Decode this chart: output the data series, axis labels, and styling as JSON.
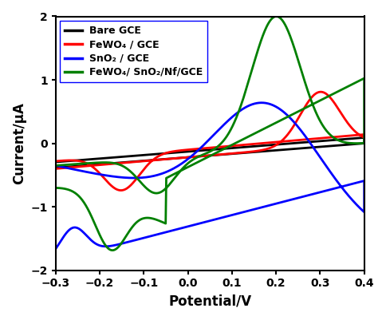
{
  "xlim": [
    -0.3,
    0.4
  ],
  "ylim": [
    -2.0,
    2.0
  ],
  "xlabel": "Potential/V",
  "ylabel": "Current/μA",
  "xticks": [
    -0.3,
    -0.2,
    -0.1,
    0.0,
    0.1,
    0.2,
    0.3,
    0.4
  ],
  "yticks": [
    -2,
    -1,
    0,
    1,
    2
  ],
  "legend_labels": [
    "Bare GCE",
    "FeWO₄ / GCE",
    "SnO₂ / GCE",
    "FeWO₄/ SnO₂/Nf/GCE"
  ],
  "colors": [
    "black",
    "red",
    "blue",
    "green"
  ],
  "background": "white"
}
